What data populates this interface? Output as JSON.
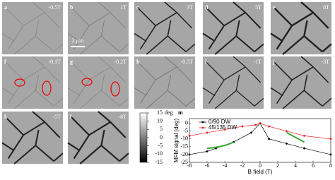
{
  "panels": [
    {
      "letter": "a",
      "field": "-0.5T"
    },
    {
      "letter": "b",
      "field": "1T"
    },
    {
      "letter": "c",
      "field": "3T"
    },
    {
      "letter": "d",
      "field": "5T"
    },
    {
      "letter": "e",
      "field": "8T"
    },
    {
      "letter": "f",
      "field": "-0.1T"
    },
    {
      "letter": "g",
      "field": "-0.2T"
    },
    {
      "letter": "h",
      "field": "-0.5T"
    },
    {
      "letter": "i",
      "field": "-1T"
    },
    {
      "letter": "j",
      "field": "-3T"
    },
    {
      "letter": "k",
      "field": "-5T"
    },
    {
      "letter": "l",
      "field": "-8T"
    }
  ],
  "scale_bar": "2 μm",
  "colorbar": {
    "label": "deg",
    "lim": [
      -15,
      15
    ],
    "ticks": [
      15,
      10,
      5,
      0,
      -5,
      -10,
      -15
    ]
  },
  "chart_data": {
    "type": "line",
    "panel_letter": "m",
    "x_label": "B field (T)",
    "y_label": "MFM signal (deg)",
    "xlim": [
      -8,
      8
    ],
    "xticks": [
      -8,
      -6,
      -4,
      -2,
      0,
      2,
      4,
      6,
      8
    ],
    "ylim": [
      -25,
      3
    ],
    "yticks": [
      0,
      -5,
      -10,
      -15,
      -20,
      -25
    ],
    "series": [
      {
        "name": "0/90 DW",
        "color": "#000000",
        "x": [
          -8,
          -6,
          -5,
          -3,
          -1,
          0,
          1,
          3,
          5,
          8
        ],
        "values": [
          -20,
          -18,
          -16,
          -12,
          -6,
          0,
          -10,
          -13,
          -16,
          -20
        ]
      },
      {
        "name": "45/135 DW",
        "color": "#e02020",
        "x": [
          -8,
          -6,
          -4,
          -2,
          -0.5,
          0,
          1,
          3,
          5,
          8
        ],
        "values": [
          -8,
          -6,
          -4,
          -2,
          -1,
          0,
          -2,
          -5,
          -8,
          -10
        ]
      }
    ]
  }
}
